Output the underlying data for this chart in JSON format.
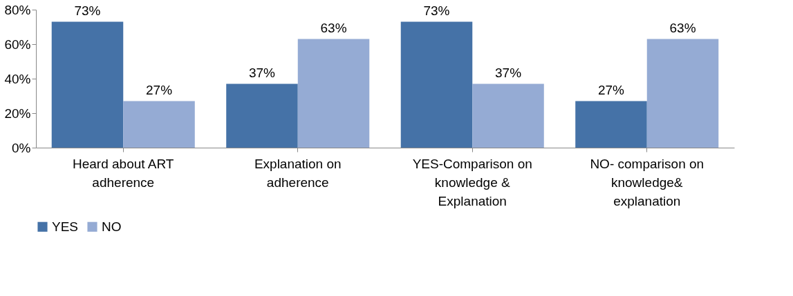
{
  "chart_data": {
    "type": "bar",
    "categories": [
      "Heard about ART adherence",
      "Explanation on adherence",
      "YES-Comparison on knowledge & Explanation",
      "NO- comparison on knowledge& explanation"
    ],
    "series": [
      {
        "name": "YES",
        "color": "#4572a7",
        "values": [
          73,
          37,
          73,
          27
        ],
        "value_labels": [
          "73%",
          "37%",
          "73%",
          "27%"
        ]
      },
      {
        "name": "NO",
        "color": "#95abd4",
        "values": [
          27,
          63,
          37,
          63
        ],
        "value_labels": [
          "27%",
          "63%",
          "37%",
          "63%"
        ]
      }
    ],
    "ylim": [
      0,
      80
    ],
    "yticks": [
      {
        "value": 0,
        "label": "0%"
      },
      {
        "value": 20,
        "label": "20%"
      },
      {
        "value": 40,
        "label": "40%"
      },
      {
        "value": 60,
        "label": "60%"
      },
      {
        "value": 80,
        "label": "80%"
      }
    ],
    "grid": false,
    "legend": "bottom"
  }
}
